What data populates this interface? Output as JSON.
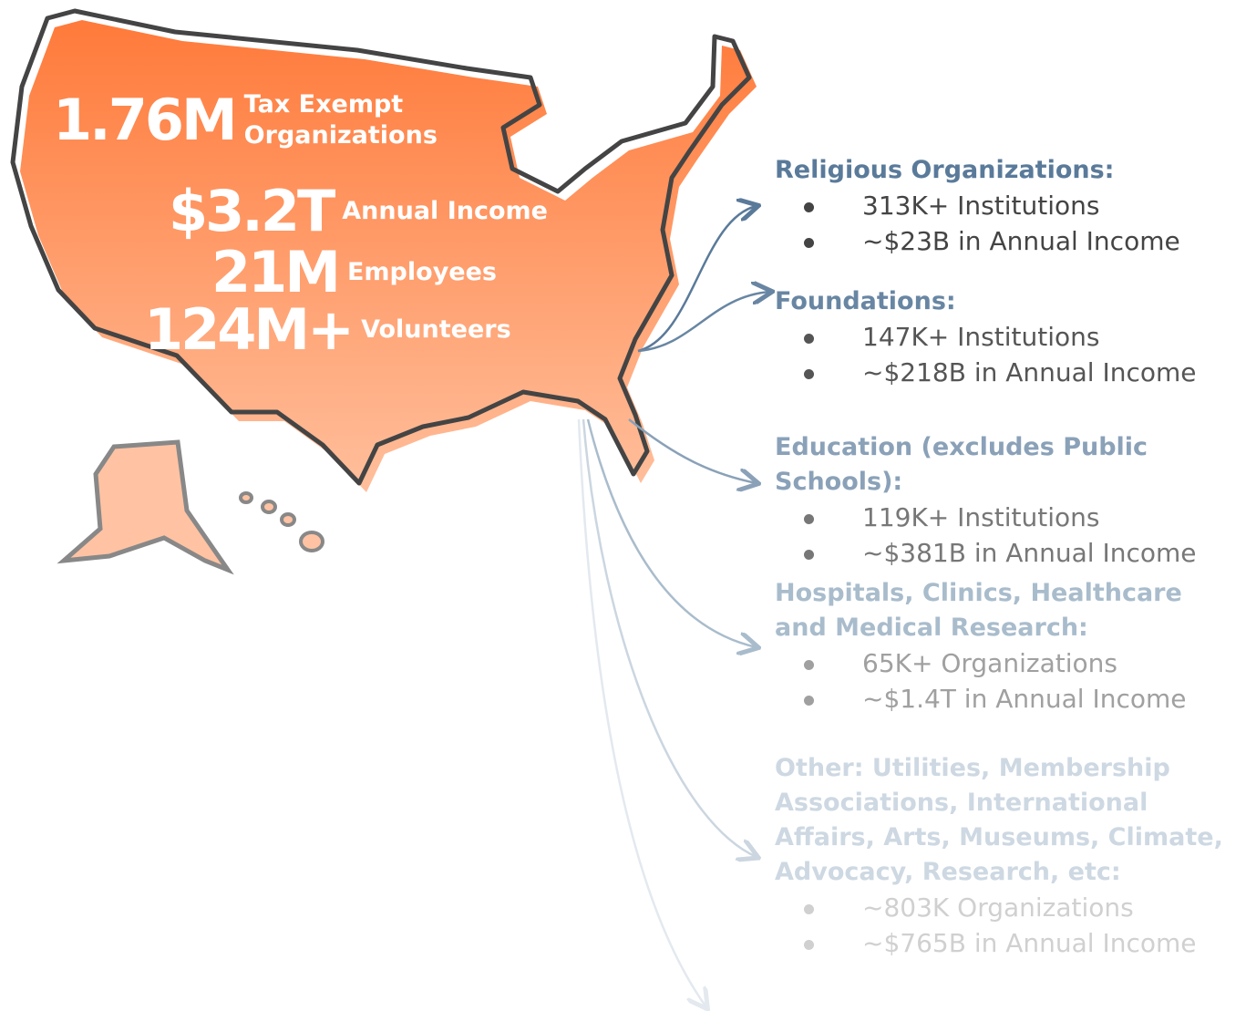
{
  "map": {
    "stats": [
      {
        "value": "1.76M",
        "label": "Tax Exempt Organizations"
      },
      {
        "value": "$3.2T",
        "label": "Annual Income"
      },
      {
        "value": "21M",
        "label": "Employees"
      },
      {
        "value": "124M+",
        "label": "Volunteers"
      }
    ]
  },
  "categories": [
    {
      "title": "Religious Organizations:",
      "items": [
        "313K+ Institutions",
        "~$23B in Annual Income"
      ]
    },
    {
      "title": "Foundations:",
      "items": [
        "147K+ Institutions",
        "~$218B in Annual Income"
      ]
    },
    {
      "title": "Education (excludes Public Schools):",
      "items": [
        "119K+ Institutions",
        "~$381B in Annual Income"
      ]
    },
    {
      "title": "Hospitals, Clinics, Healthcare and Medical Research:",
      "items": [
        "65K+ Organizations",
        "~$1.4T in Annual Income"
      ]
    },
    {
      "title": "Other: Utilities, Membership Associations, International Affairs, Arts, Museums, Climate, Advocacy, Research, etc:",
      "items": [
        "~803K Organizations",
        "~$765B in Annual Income"
      ]
    }
  ]
}
